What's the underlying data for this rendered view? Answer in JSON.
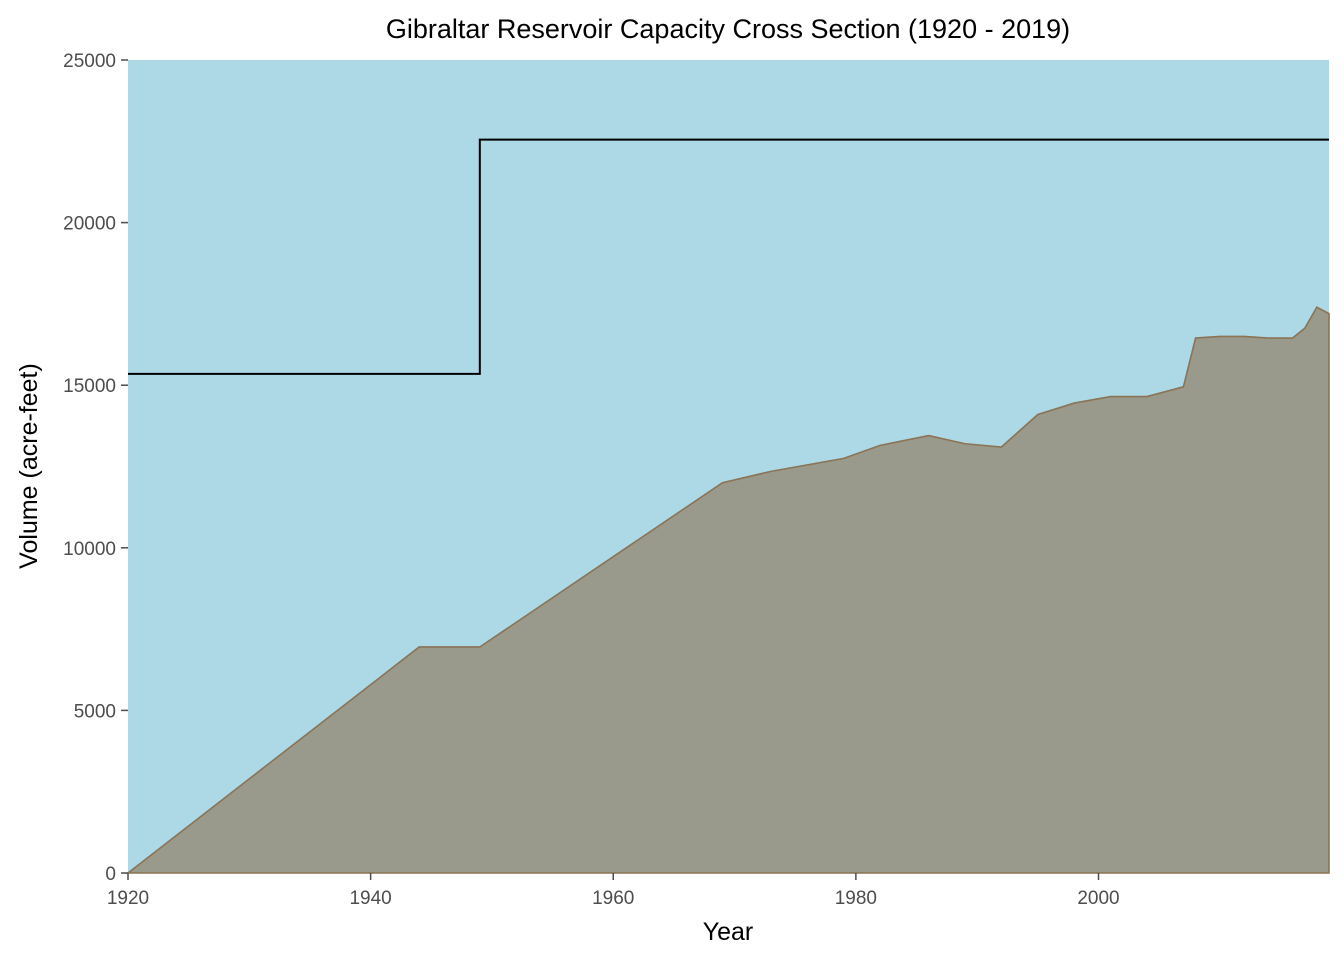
{
  "chart_data": {
    "type": "area",
    "title": "Gibraltar Reservoir Capacity Cross Section (1920 - 2019)",
    "xlabel": "Year",
    "ylabel": "Volume (acre-feet)",
    "xlim": [
      1920,
      2019
    ],
    "ylim": [
      0,
      25000
    ],
    "x_ticks": [
      1920,
      1940,
      1960,
      1980,
      2000
    ],
    "y_ticks": [
      0,
      5000,
      10000,
      15000,
      20000,
      25000
    ],
    "grid": false,
    "legend": "none",
    "colors": {
      "water": "#add8e6",
      "sediment_fill": "#999a8b",
      "sediment_outline": "#8b7355",
      "capacity_line": "#000000",
      "axis": "#4d4d4d"
    },
    "series": [
      {
        "role": "capacity-step-line",
        "x": [
          1920,
          1949,
          1949,
          2019
        ],
        "y": [
          15350,
          15350,
          22550,
          22550
        ]
      },
      {
        "role": "sediment-area",
        "x": [
          1920,
          1944,
          1949,
          1969,
          1973,
          1976,
          1979,
          1982,
          1986,
          1989,
          1992,
          1995,
          1998,
          2001,
          2004,
          2007,
          2008,
          2010,
          2012,
          2014,
          2016,
          2017,
          2018,
          2019
        ],
        "y": [
          0,
          6950,
          6950,
          12000,
          12350,
          12550,
          12750,
          13150,
          13450,
          13200,
          13100,
          14100,
          14450,
          14650,
          14650,
          14950,
          16450,
          16500,
          16500,
          16450,
          16450,
          16750,
          17400,
          17200
        ]
      }
    ]
  }
}
